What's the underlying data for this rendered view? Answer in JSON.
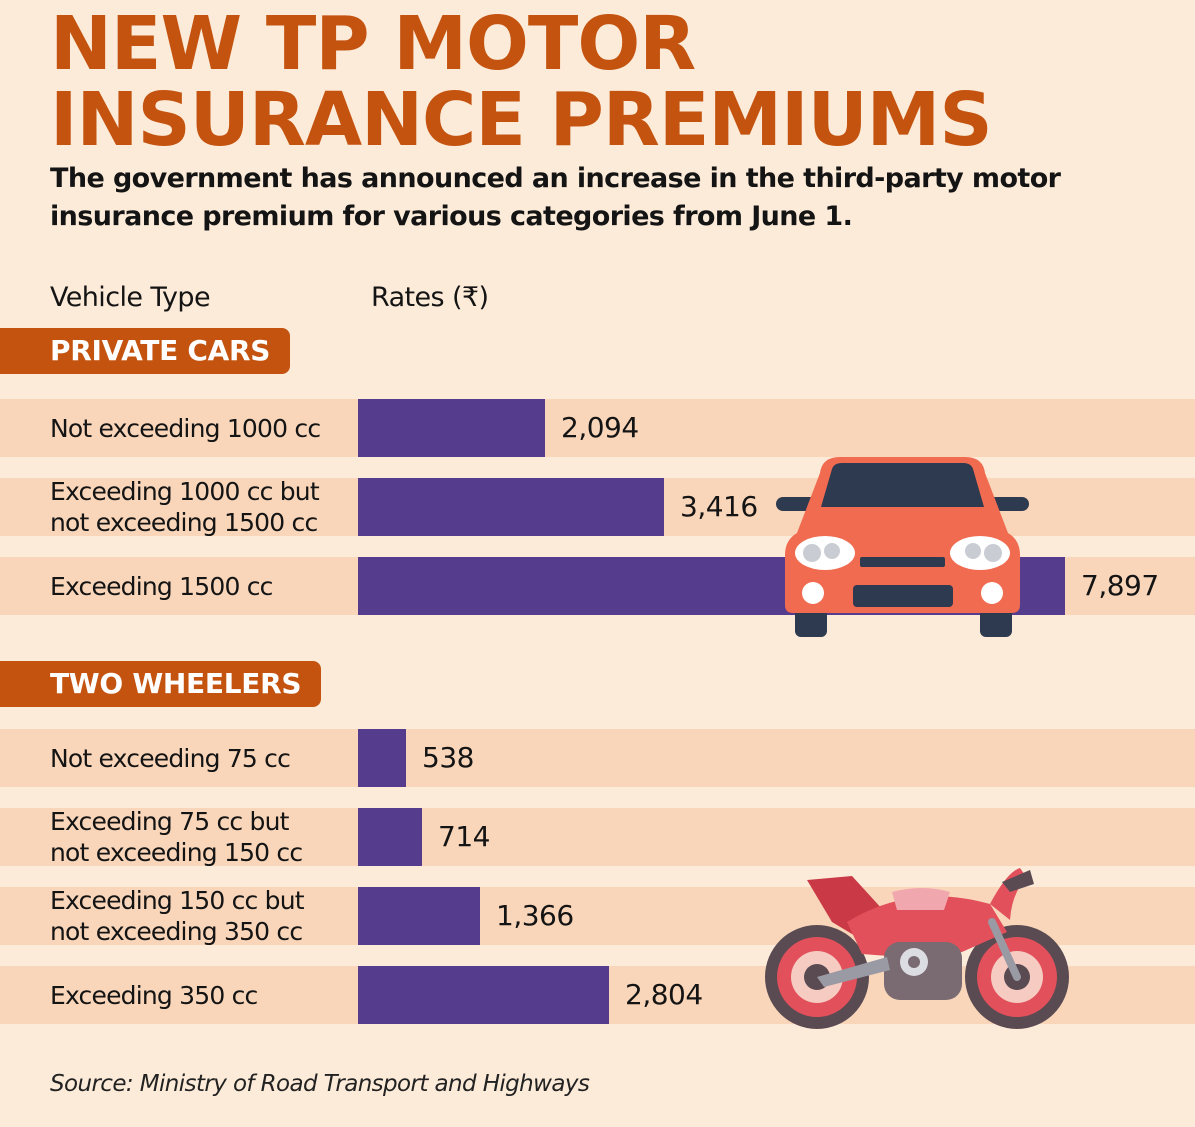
{
  "chart_data": {
    "type": "bar",
    "orientation": "horizontal",
    "title_lines": [
      "NEW TP MOTOR",
      "INSURANCE PREMIUMS"
    ],
    "subtitle": "The government has announced an increase in the third-party motor insurance premium for various categories from June 1.",
    "column_headers": {
      "category": "Vehicle Type",
      "value": "Rates (₹)"
    },
    "groups": [
      {
        "name": "PRIVATE CARS",
        "categories": [
          [
            "Not exceeding 1000 cc"
          ],
          [
            "Exceeding 1000 cc but",
            "not exceeding 1500 cc"
          ],
          [
            "Exceeding 1500 cc"
          ]
        ],
        "values": [
          2094,
          3416,
          7897
        ],
        "value_labels": [
          "2,094",
          "3,416",
          "7,897"
        ]
      },
      {
        "name": "TWO WHEELERS",
        "categories": [
          [
            "Not exceeding 75 cc"
          ],
          [
            "Exceeding 75 cc but",
            "not exceeding 150 cc"
          ],
          [
            "Exceeding 150 cc but",
            "not exceeding 350 cc"
          ],
          [
            "Exceeding 350 cc"
          ]
        ],
        "values": [
          538,
          714,
          1366,
          2804
        ],
        "value_labels": [
          "538",
          "714",
          "1,366",
          "2,804"
        ]
      }
    ],
    "source": "Source: Ministry of Road Transport and Highways"
  },
  "colors": {
    "title": "#c45310",
    "section_tag": "#c45310",
    "bar": "#563c8c",
    "row_band": "#f9d6ba",
    "background": "#fcebd9"
  },
  "icons": [
    "car-illustration",
    "motorcycle-illustration"
  ]
}
